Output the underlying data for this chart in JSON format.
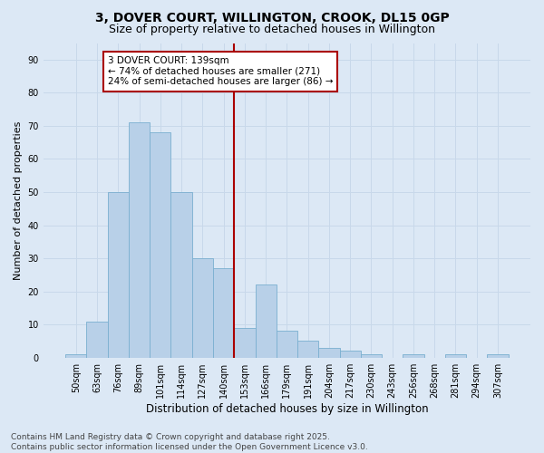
{
  "title": "3, DOVER COURT, WILLINGTON, CROOK, DL15 0GP",
  "subtitle": "Size of property relative to detached houses in Willington",
  "xlabel": "Distribution of detached houses by size in Willington",
  "ylabel": "Number of detached properties",
  "bin_labels": [
    "50sqm",
    "63sqm",
    "76sqm",
    "89sqm",
    "101sqm",
    "114sqm",
    "127sqm",
    "140sqm",
    "153sqm",
    "166sqm",
    "179sqm",
    "191sqm",
    "204sqm",
    "217sqm",
    "230sqm",
    "243sqm",
    "256sqm",
    "268sqm",
    "281sqm",
    "294sqm",
    "307sqm"
  ],
  "bar_values": [
    1,
    11,
    50,
    71,
    68,
    50,
    30,
    27,
    9,
    22,
    8,
    5,
    3,
    2,
    1,
    0,
    1,
    0,
    1,
    0,
    1
  ],
  "bar_color": "#b8d0e8",
  "bar_edge_color": "#7aafd0",
  "vline_index": 7,
  "marker_label": "3 DOVER COURT: 139sqm",
  "annotation_line1": "← 74% of detached houses are smaller (271)",
  "annotation_line2": "24% of semi-detached houses are larger (86) →",
  "annotation_box_color": "#ffffff",
  "annotation_box_edge_color": "#aa0000",
  "vline_color": "#aa0000",
  "ylim": [
    0,
    95
  ],
  "yticks": [
    0,
    10,
    20,
    30,
    40,
    50,
    60,
    70,
    80,
    90
  ],
  "grid_color": "#c8d8ea",
  "background_color": "#dce8f5",
  "footnote_line1": "Contains HM Land Registry data © Crown copyright and database right 2025.",
  "footnote_line2": "Contains public sector information licensed under the Open Government Licence v3.0.",
  "title_fontsize": 10,
  "subtitle_fontsize": 9,
  "xlabel_fontsize": 8.5,
  "ylabel_fontsize": 8,
  "tick_fontsize": 7,
  "annotation_fontsize": 7.5,
  "footnote_fontsize": 6.5
}
